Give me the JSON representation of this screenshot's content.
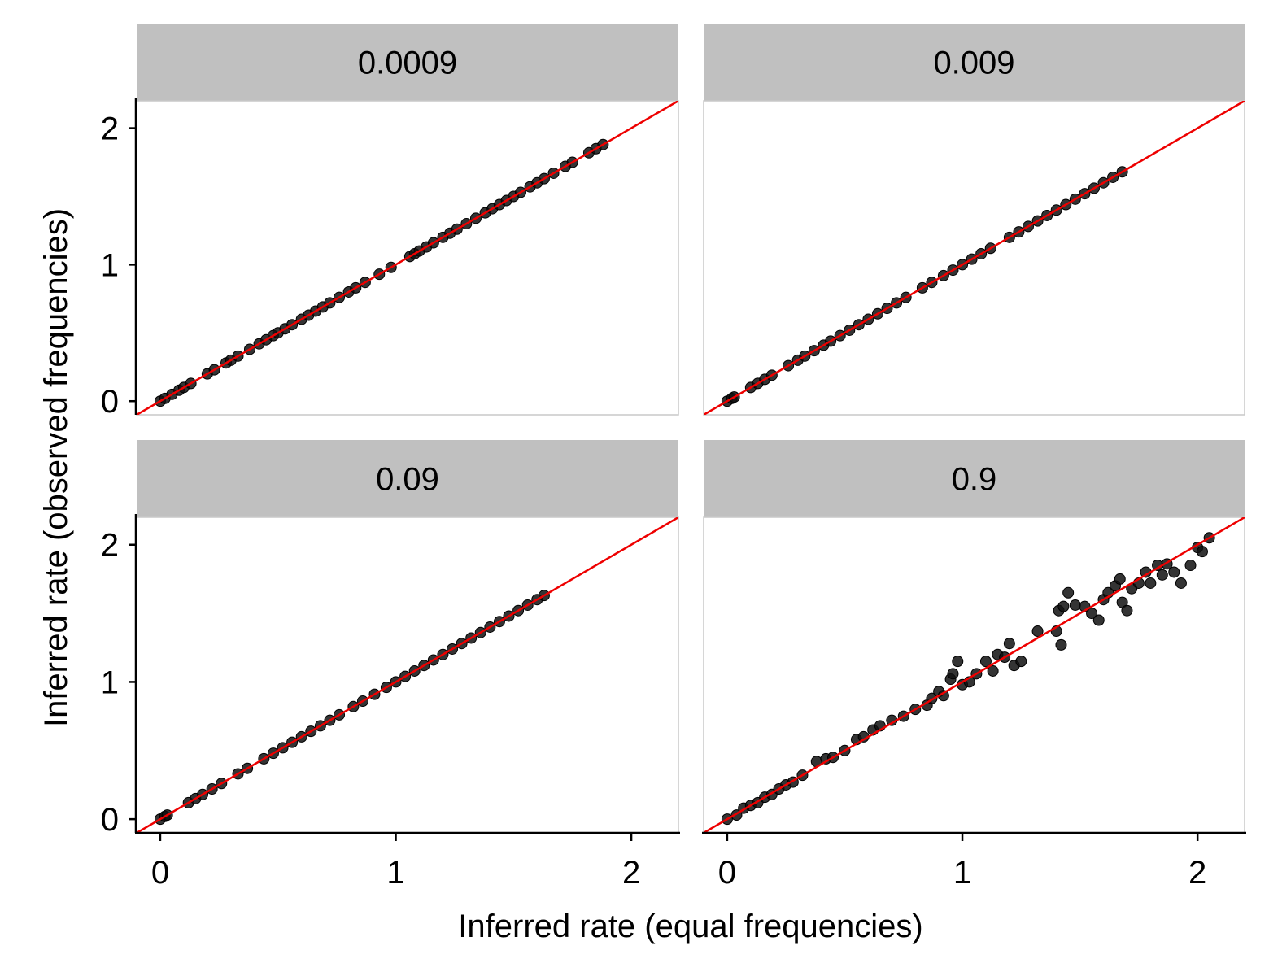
{
  "chart_data": {
    "type": "scatter",
    "xlabel": "Inferred rate (equal frequencies)",
    "ylabel": "Inferred rate (observed frequencies)",
    "xlim": [
      -0.1,
      2.2
    ],
    "ylim": [
      -0.1,
      2.2
    ],
    "xticks": [
      0,
      1,
      2
    ],
    "yticks": [
      0,
      1,
      2
    ],
    "reference_line": {
      "slope": 1,
      "intercept": 0,
      "color": "#ee0000"
    },
    "colors": {
      "points": "#111111",
      "strip_fill": "#c0c0c0",
      "panel_border": "#c8c8c8",
      "axis": "#000000"
    },
    "facets": [
      {
        "label": "0.0009",
        "points": [
          [
            0.0,
            0.0
          ],
          [
            0.02,
            0.02
          ],
          [
            0.05,
            0.05
          ],
          [
            0.08,
            0.08
          ],
          [
            0.1,
            0.1
          ],
          [
            0.13,
            0.13
          ],
          [
            0.2,
            0.2
          ],
          [
            0.23,
            0.23
          ],
          [
            0.28,
            0.28
          ],
          [
            0.3,
            0.3
          ],
          [
            0.33,
            0.33
          ],
          [
            0.38,
            0.38
          ],
          [
            0.42,
            0.42
          ],
          [
            0.45,
            0.45
          ],
          [
            0.48,
            0.48
          ],
          [
            0.5,
            0.5
          ],
          [
            0.53,
            0.53
          ],
          [
            0.56,
            0.56
          ],
          [
            0.6,
            0.6
          ],
          [
            0.63,
            0.63
          ],
          [
            0.66,
            0.66
          ],
          [
            0.69,
            0.69
          ],
          [
            0.72,
            0.72
          ],
          [
            0.76,
            0.76
          ],
          [
            0.8,
            0.8
          ],
          [
            0.83,
            0.83
          ],
          [
            0.87,
            0.87
          ],
          [
            0.93,
            0.93
          ],
          [
            0.98,
            0.98
          ],
          [
            1.06,
            1.06
          ],
          [
            1.08,
            1.08
          ],
          [
            1.1,
            1.1
          ],
          [
            1.13,
            1.13
          ],
          [
            1.16,
            1.16
          ],
          [
            1.2,
            1.2
          ],
          [
            1.23,
            1.23
          ],
          [
            1.26,
            1.26
          ],
          [
            1.3,
            1.3
          ],
          [
            1.34,
            1.34
          ],
          [
            1.38,
            1.38
          ],
          [
            1.41,
            1.41
          ],
          [
            1.44,
            1.44
          ],
          [
            1.47,
            1.47
          ],
          [
            1.5,
            1.5
          ],
          [
            1.53,
            1.53
          ],
          [
            1.57,
            1.57
          ],
          [
            1.6,
            1.6
          ],
          [
            1.63,
            1.63
          ],
          [
            1.67,
            1.67
          ],
          [
            1.72,
            1.72
          ],
          [
            1.75,
            1.75
          ],
          [
            1.82,
            1.82
          ],
          [
            1.85,
            1.85
          ],
          [
            1.88,
            1.88
          ]
        ]
      },
      {
        "label": "0.009",
        "points": [
          [
            0.0,
            0.0
          ],
          [
            0.02,
            0.02
          ],
          [
            0.03,
            0.03
          ],
          [
            0.1,
            0.1
          ],
          [
            0.13,
            0.13
          ],
          [
            0.16,
            0.16
          ],
          [
            0.19,
            0.19
          ],
          [
            0.26,
            0.26
          ],
          [
            0.3,
            0.3
          ],
          [
            0.33,
            0.33
          ],
          [
            0.37,
            0.37
          ],
          [
            0.41,
            0.41
          ],
          [
            0.44,
            0.44
          ],
          [
            0.48,
            0.48
          ],
          [
            0.52,
            0.52
          ],
          [
            0.56,
            0.56
          ],
          [
            0.6,
            0.6
          ],
          [
            0.64,
            0.64
          ],
          [
            0.68,
            0.68
          ],
          [
            0.72,
            0.72
          ],
          [
            0.76,
            0.76
          ],
          [
            0.83,
            0.83
          ],
          [
            0.87,
            0.87
          ],
          [
            0.92,
            0.92
          ],
          [
            0.96,
            0.96
          ],
          [
            1.0,
            1.0
          ],
          [
            1.04,
            1.04
          ],
          [
            1.08,
            1.08
          ],
          [
            1.12,
            1.12
          ],
          [
            1.2,
            1.2
          ],
          [
            1.24,
            1.24
          ],
          [
            1.28,
            1.28
          ],
          [
            1.32,
            1.32
          ],
          [
            1.36,
            1.36
          ],
          [
            1.4,
            1.4
          ],
          [
            1.44,
            1.44
          ],
          [
            1.48,
            1.48
          ],
          [
            1.52,
            1.52
          ],
          [
            1.56,
            1.56
          ],
          [
            1.6,
            1.6
          ],
          [
            1.64,
            1.64
          ],
          [
            1.68,
            1.68
          ]
        ]
      },
      {
        "label": "0.09",
        "points": [
          [
            0.0,
            0.0
          ],
          [
            0.02,
            0.02
          ],
          [
            0.03,
            0.03
          ],
          [
            0.12,
            0.12
          ],
          [
            0.15,
            0.15
          ],
          [
            0.18,
            0.18
          ],
          [
            0.22,
            0.22
          ],
          [
            0.26,
            0.26
          ],
          [
            0.33,
            0.33
          ],
          [
            0.37,
            0.37
          ],
          [
            0.44,
            0.44
          ],
          [
            0.48,
            0.48
          ],
          [
            0.52,
            0.52
          ],
          [
            0.56,
            0.56
          ],
          [
            0.6,
            0.6
          ],
          [
            0.64,
            0.64
          ],
          [
            0.68,
            0.68
          ],
          [
            0.72,
            0.72
          ],
          [
            0.76,
            0.76
          ],
          [
            0.82,
            0.82
          ],
          [
            0.86,
            0.86
          ],
          [
            0.91,
            0.91
          ],
          [
            0.96,
            0.96
          ],
          [
            1.0,
            1.0
          ],
          [
            1.04,
            1.04
          ],
          [
            1.08,
            1.08
          ],
          [
            1.12,
            1.12
          ],
          [
            1.16,
            1.16
          ],
          [
            1.2,
            1.2
          ],
          [
            1.24,
            1.24
          ],
          [
            1.28,
            1.28
          ],
          [
            1.32,
            1.32
          ],
          [
            1.36,
            1.36
          ],
          [
            1.4,
            1.4
          ],
          [
            1.44,
            1.44
          ],
          [
            1.48,
            1.48
          ],
          [
            1.52,
            1.52
          ],
          [
            1.56,
            1.56
          ],
          [
            1.6,
            1.6
          ],
          [
            1.63,
            1.63
          ]
        ]
      },
      {
        "label": "0.9",
        "points": [
          [
            0.0,
            0.0
          ],
          [
            0.04,
            0.03
          ],
          [
            0.07,
            0.08
          ],
          [
            0.1,
            0.1
          ],
          [
            0.13,
            0.12
          ],
          [
            0.16,
            0.16
          ],
          [
            0.19,
            0.18
          ],
          [
            0.22,
            0.22
          ],
          [
            0.25,
            0.25
          ],
          [
            0.28,
            0.27
          ],
          [
            0.32,
            0.32
          ],
          [
            0.38,
            0.42
          ],
          [
            0.42,
            0.44
          ],
          [
            0.45,
            0.45
          ],
          [
            0.5,
            0.5
          ],
          [
            0.55,
            0.58
          ],
          [
            0.58,
            0.6
          ],
          [
            0.62,
            0.65
          ],
          [
            0.65,
            0.68
          ],
          [
            0.7,
            0.72
          ],
          [
            0.75,
            0.75
          ],
          [
            0.8,
            0.8
          ],
          [
            0.85,
            0.83
          ],
          [
            0.87,
            0.88
          ],
          [
            0.9,
            0.93
          ],
          [
            0.92,
            0.9
          ],
          [
            0.95,
            1.02
          ],
          [
            0.96,
            1.06
          ],
          [
            0.98,
            1.15
          ],
          [
            1.0,
            0.98
          ],
          [
            1.03,
            1.0
          ],
          [
            1.06,
            1.06
          ],
          [
            1.1,
            1.15
          ],
          [
            1.13,
            1.08
          ],
          [
            1.15,
            1.2
          ],
          [
            1.18,
            1.18
          ],
          [
            1.2,
            1.28
          ],
          [
            1.22,
            1.12
          ],
          [
            1.25,
            1.15
          ],
          [
            1.32,
            1.37
          ],
          [
            1.4,
            1.37
          ],
          [
            1.42,
            1.27
          ],
          [
            1.41,
            1.52
          ],
          [
            1.43,
            1.55
          ],
          [
            1.45,
            1.65
          ],
          [
            1.48,
            1.56
          ],
          [
            1.52,
            1.55
          ],
          [
            1.55,
            1.5
          ],
          [
            1.58,
            1.45
          ],
          [
            1.6,
            1.6
          ],
          [
            1.62,
            1.65
          ],
          [
            1.65,
            1.7
          ],
          [
            1.67,
            1.75
          ],
          [
            1.68,
            1.58
          ],
          [
            1.7,
            1.52
          ],
          [
            1.72,
            1.68
          ],
          [
            1.75,
            1.72
          ],
          [
            1.78,
            1.8
          ],
          [
            1.8,
            1.72
          ],
          [
            1.83,
            1.85
          ],
          [
            1.85,
            1.78
          ],
          [
            1.87,
            1.86
          ],
          [
            1.9,
            1.8
          ],
          [
            1.93,
            1.72
          ],
          [
            1.97,
            1.85
          ],
          [
            2.0,
            1.98
          ],
          [
            2.02,
            1.95
          ],
          [
            2.05,
            2.05
          ]
        ]
      }
    ]
  }
}
